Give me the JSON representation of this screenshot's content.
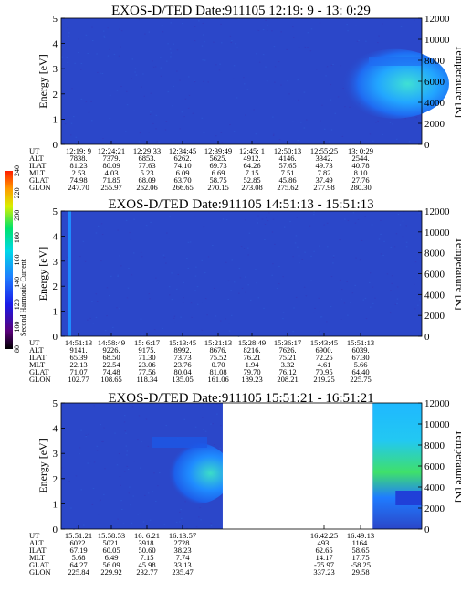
{
  "figure": {
    "colorbar": {
      "label": "Second Harmonic Current",
      "ticks": [
        "80",
        "100",
        "120",
        "140",
        "160",
        "180",
        "200",
        "220",
        "240"
      ],
      "colors": [
        "#000000",
        "#5a007a",
        "#1a1ae8",
        "#1f7cff",
        "#00d8e8",
        "#00e36a",
        "#d8f000",
        "#ff9a00",
        "#ff1e00"
      ]
    },
    "background_color": "#2b47c9"
  },
  "chart_data": [
    {
      "type": "heatmap",
      "title": "EXOS-D/TED   Date:911105  12:19: 9 - 13: 0:29",
      "ylabel": "Energy [eV]",
      "y2label": "Temperature [K]",
      "ylim": [
        0,
        5
      ],
      "y2lim": [
        0,
        12000
      ],
      "yticks": [
        "0",
        "1",
        "2",
        "3",
        "4",
        "5"
      ],
      "y2ticks": [
        "0",
        "2000",
        "4000",
        "6000",
        "8000",
        "10000",
        "12000"
      ],
      "gaps": [],
      "xlabels": [
        "12:19: 9",
        "12:24:21",
        "12:29:33",
        "12:34:45",
        "12:39:49",
        "12:45: 1",
        "12:50:13",
        "12:55:25",
        "13: 0:29"
      ],
      "table": [
        {
          "name": "UT",
          "values": [
            "12:19: 9",
            "12:24:21",
            "12:29:33",
            "12:34:45",
            "12:39:49",
            "12:45: 1",
            "12:50:13",
            "12:55:25",
            "13: 0:29"
          ]
        },
        {
          "name": "ALT",
          "values": [
            "7838.",
            "7379.",
            "6853.",
            "6262.",
            "5625.",
            "4912.",
            "4146.",
            "3342.",
            "2544."
          ]
        },
        {
          "name": "ILAT",
          "values": [
            "81.23",
            "80.09",
            "77.63",
            "74.10",
            "69.73",
            "64.26",
            "57.65",
            "49.73",
            "40.78"
          ]
        },
        {
          "name": "MLT",
          "values": [
            "2.53",
            "4.03",
            "5.23",
            "6.09",
            "6.69",
            "7.15",
            "7.51",
            "7.82",
            "8.10"
          ]
        },
        {
          "name": "GLAT",
          "values": [
            "74.98",
            "71.85",
            "68.09",
            "63.70",
            "58.75",
            "52.85",
            "45.86",
            "37.49",
            "27.76"
          ]
        },
        {
          "name": "GLON",
          "values": [
            "247.70",
            "255.97",
            "262.06",
            "266.65",
            "270.15",
            "273.08",
            "275.62",
            "277.98",
            "280.30"
          ]
        }
      ]
    },
    {
      "type": "heatmap",
      "title": "EXOS-D/TED   Date:911105  14:51:13 - 15:51:13",
      "ylabel": "Energy [eV]",
      "y2label": "Temperature [K]",
      "ylim": [
        0,
        5
      ],
      "y2lim": [
        0,
        12000
      ],
      "yticks": [
        "0",
        "1",
        "2",
        "3",
        "4",
        "5"
      ],
      "y2ticks": [
        "0",
        "2000",
        "4000",
        "6000",
        "8000",
        "10000",
        "12000"
      ],
      "gaps": [],
      "xlabels": [
        "14:51:13",
        "14:58:49",
        "15: 6:17",
        "15:13:45",
        "15:21:13",
        "15:28:49",
        "15:36:17",
        "15:43:45",
        "15:51:13"
      ],
      "table": [
        {
          "name": "UT",
          "values": [
            "14:51:13",
            "14:58:49",
            "15: 6:17",
            "15:13:45",
            "15:21:13",
            "15:28:49",
            "15:36:17",
            "15:43:45",
            "15:51:13"
          ]
        },
        {
          "name": "ALT",
          "values": [
            "9141.",
            "9226.",
            "9175.",
            "8992.",
            "8676.",
            "8216.",
            "7626.",
            "6900.",
            "6039."
          ]
        },
        {
          "name": "ILAT",
          "values": [
            "65.39",
            "68.50",
            "71.30",
            "73.73",
            "75.52",
            "76.21",
            "75.21",
            "72.25",
            "67.30"
          ]
        },
        {
          "name": "MLT",
          "values": [
            "22.13",
            "22.54",
            "23.06",
            "23.76",
            "0.70",
            "1.94",
            "3.32",
            "4.61",
            "5.66"
          ]
        },
        {
          "name": "GLAT",
          "values": [
            "71.07",
            "74.48",
            "77.56",
            "80.04",
            "81.08",
            "79.70",
            "76.12",
            "70.95",
            "64.40"
          ]
        },
        {
          "name": "GLON",
          "values": [
            "102.77",
            "108.65",
            "118.34",
            "135.05",
            "161.06",
            "189.23",
            "208.21",
            "219.25",
            "225.75"
          ]
        }
      ]
    },
    {
      "type": "heatmap",
      "title": "EXOS-D/TED   Date:911105  15:51:21 - 16:51:21",
      "ylabel": "Energy [eV]",
      "y2label": "Temperature [K]",
      "ylim": [
        0,
        5
      ],
      "y2lim": [
        0,
        12000
      ],
      "yticks": [
        "0",
        "1",
        "2",
        "3",
        "4",
        "5"
      ],
      "y2ticks": [
        "0",
        "2000",
        "4000",
        "6000",
        "8000",
        "10000",
        "12000"
      ],
      "gaps": [
        [
          0.448,
          0.864
        ]
      ],
      "xlabels": [
        "15:51:21",
        "15:58:53",
        "16: 6:21",
        "16:13:57",
        "",
        "",
        "",
        "16:42:25",
        "16:49:13"
      ],
      "table": [
        {
          "name": "UT",
          "values": [
            "15:51:21",
            "15:58:53",
            "16: 6:21",
            "16:13:57",
            "",
            "",
            "",
            "16:42:25",
            "16:49:13"
          ]
        },
        {
          "name": "ALT",
          "values": [
            "6022.",
            "5021.",
            "3918.",
            "2728.",
            "",
            "",
            "",
            "493.",
            "1164."
          ]
        },
        {
          "name": "ILAT",
          "values": [
            "67.19",
            "60.05",
            "50.60",
            "38.23",
            "",
            "",
            "",
            "62.65",
            "58.65"
          ]
        },
        {
          "name": "MLT",
          "values": [
            "5.68",
            "6.49",
            "7.15",
            "7.74",
            "",
            "",
            "",
            "14.17",
            "17.75"
          ]
        },
        {
          "name": "GLAT",
          "values": [
            "64.27",
            "56.09",
            "45.98",
            "33.13",
            "",
            "",
            "",
            "-75.97",
            "-58.25"
          ]
        },
        {
          "name": "GLON",
          "values": [
            "225.84",
            "229.92",
            "232.77",
            "235.47",
            "",
            "",
            "",
            "337.23",
            "29.58"
          ]
        }
      ]
    }
  ]
}
